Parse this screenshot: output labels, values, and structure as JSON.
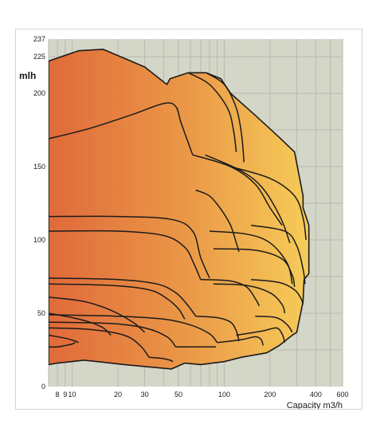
{
  "chart_data": {
    "type": "area",
    "title": "",
    "xlabel": "Capacity m3/h",
    "ylabel": "mlh",
    "x_scale": "log",
    "xlim": [
      7,
      600
    ],
    "ylim": [
      0,
      237
    ],
    "grid": true,
    "x_ticks": [
      8,
      9,
      10,
      20,
      30,
      50,
      100,
      200,
      400,
      600
    ],
    "x_tick_labels": [
      "8",
      "9",
      "10",
      "20",
      "30",
      "50",
      "100",
      "200",
      "400",
      "600"
    ],
    "y_ticks": [
      0,
      50,
      100,
      150,
      200,
      225,
      237
    ],
    "y_tick_labels": [
      "0",
      "50",
      "100",
      "150",
      "200",
      "225",
      "237"
    ],
    "colors": {
      "background": "#d4d6c8",
      "grid": "#b9b9ad",
      "fill_low": "#e06a3a",
      "fill_high": "#f6cc58",
      "outline": "#1b1b1b"
    },
    "envelope": {
      "x": [
        7,
        7,
        11,
        16,
        30,
        42,
        44,
        58,
        76,
        95,
        110,
        160,
        230,
        290,
        330,
        330,
        360,
        360,
        335,
        330,
        300,
        280,
        230,
        190,
        130,
        100,
        70,
        55,
        45,
        35,
        22,
        12,
        8,
        7
      ],
      "y": [
        15,
        222,
        229,
        230,
        218,
        206,
        210,
        214,
        214,
        210,
        200,
        185,
        170,
        160,
        130,
        122,
        110,
        77,
        73,
        58,
        37,
        35,
        28,
        23,
        20,
        17,
        15,
        16,
        12,
        13,
        15,
        18,
        16,
        15
      ]
    },
    "curves": [
      {
        "x": [
          7,
          13,
          24,
          40,
          48,
          52,
          62
        ],
        "y": [
          169,
          176,
          185,
          193,
          191,
          180,
          158
        ]
      },
      {
        "x": [
          7,
          20,
          45,
          62,
          70,
          80
        ],
        "y": [
          116,
          116,
          114,
          106,
          88,
          74
        ]
      },
      {
        "x": [
          7,
          20,
          40,
          55,
          63,
          70
        ],
        "y": [
          106,
          106,
          103,
          95,
          84,
          73
        ]
      },
      {
        "x": [
          7,
          20,
          36,
          48,
          57,
          65
        ],
        "y": [
          74,
          73,
          70,
          64,
          56,
          48
        ]
      },
      {
        "x": [
          7,
          18,
          32,
          42,
          50,
          55
        ],
        "y": [
          70,
          69,
          66,
          60,
          53,
          46
        ]
      },
      {
        "x": [
          7,
          12,
          18,
          25,
          30
        ],
        "y": [
          61,
          58,
          52,
          44,
          37
        ]
      },
      {
        "x": [
          7,
          10,
          13,
          16,
          18
        ],
        "y": [
          50,
          47,
          44,
          40,
          35
        ]
      },
      {
        "x": [
          7,
          20,
          40,
          60,
          80,
          90
        ],
        "y": [
          49,
          48,
          46,
          42,
          36,
          30
        ]
      },
      {
        "x": [
          7,
          18,
          30,
          42,
          48
        ],
        "y": [
          44,
          43,
          40,
          34,
          27
        ]
      },
      {
        "x": [
          7,
          13,
          22,
          28,
          32
        ],
        "y": [
          40,
          39,
          35,
          28,
          20
        ]
      },
      {
        "x": [
          7,
          9,
          10.5,
          11
        ],
        "y": [
          35,
          33,
          31,
          30
        ]
      },
      {
        "x": [
          7,
          8,
          9,
          10,
          10.5
        ],
        "y": [
          27,
          27,
          28,
          29,
          30
        ]
      },
      {
        "x": [
          58,
          80,
          105,
          115,
          120
        ],
        "y": [
          214,
          206,
          190,
          175,
          160
        ]
      },
      {
        "x": [
          76,
          100,
          120,
          130,
          135
        ],
        "y": [
          214,
          206,
          190,
          172,
          153
        ]
      },
      {
        "x": [
          62,
          110,
          160,
          200,
          240
        ],
        "y": [
          158,
          150,
          138,
          122,
          110
        ]
      },
      {
        "x": [
          75,
          130,
          180,
          235,
          270
        ],
        "y": [
          158,
          147,
          135,
          115,
          98
        ]
      },
      {
        "x": [
          110,
          200,
          290,
          330,
          345
        ],
        "y": [
          150,
          142,
          130,
          115,
          100
        ]
      },
      {
        "x": [
          65,
          80,
          95,
          110,
          120,
          125
        ],
        "y": [
          134,
          130,
          121,
          110,
          98,
          92
        ]
      },
      {
        "x": [
          80,
          140,
          200,
          260,
          280
        ],
        "y": [
          106,
          104,
          98,
          84,
          70
        ]
      },
      {
        "x": [
          85,
          160,
          240,
          280,
          290
        ],
        "y": [
          94,
          93,
          87,
          76,
          68
        ]
      },
      {
        "x": [
          150,
          250,
          300,
          330,
          340
        ],
        "y": [
          110,
          106,
          96,
          80,
          70
        ]
      },
      {
        "x": [
          70,
          110,
          140,
          160,
          170
        ],
        "y": [
          73,
          72,
          68,
          60,
          55
        ]
      },
      {
        "x": [
          85,
          140,
          200,
          240,
          250
        ],
        "y": [
          70,
          69,
          64,
          56,
          50
        ]
      },
      {
        "x": [
          150,
          230,
          290,
          320,
          330
        ],
        "y": [
          73,
          71,
          66,
          60,
          56
        ]
      },
      {
        "x": [
          65,
          90,
          110,
          120,
          125
        ],
        "y": [
          48,
          47,
          44,
          38,
          31
        ]
      },
      {
        "x": [
          90,
          130,
          160,
          175,
          180
        ],
        "y": [
          30,
          32,
          34,
          32,
          28
        ]
      },
      {
        "x": [
          120,
          180,
          220,
          240,
          250
        ],
        "y": [
          35,
          38,
          40,
          36,
          30
        ]
      },
      {
        "x": [
          160,
          220,
          260,
          280
        ],
        "y": [
          48,
          47,
          42,
          37
        ]
      },
      {
        "x": [
          48,
          60,
          72,
          82,
          88
        ],
        "y": [
          27,
          27,
          27,
          27,
          27
        ]
      },
      {
        "x": [
          32,
          40,
          44,
          46
        ],
        "y": [
          20,
          19,
          18,
          17
        ]
      }
    ]
  }
}
